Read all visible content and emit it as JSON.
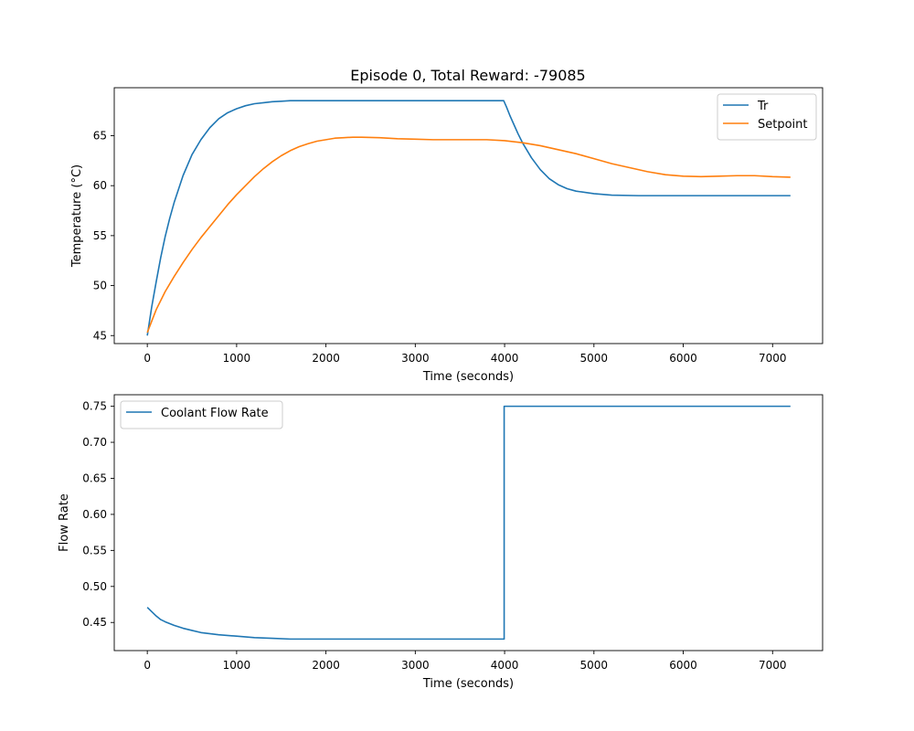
{
  "figure_title": "Episode 0, Total Reward: -79085",
  "chart_data": [
    {
      "type": "line",
      "title": "Episode 0, Total Reward: -79085",
      "xlabel": "Time (seconds)",
      "ylabel": "Temperature (°C)",
      "xlim": [
        -370,
        7560
      ],
      "ylim": [
        44.2,
        69.8
      ],
      "xticks": [
        0,
        1000,
        2000,
        3000,
        4000,
        5000,
        6000,
        7000
      ],
      "yticks": [
        45,
        50,
        55,
        60,
        65
      ],
      "legend_position": "top-right",
      "grid": false,
      "series": [
        {
          "name": "Tr",
          "color": "#1f77b4",
          "x": [
            0,
            50,
            100,
            150,
            200,
            250,
            300,
            400,
            500,
            600,
            700,
            800,
            900,
            1000,
            1100,
            1200,
            1300,
            1400,
            1500,
            1600,
            1800,
            2000,
            2500,
            3000,
            3500,
            3990,
            4020,
            4060,
            4100,
            4150,
            4200,
            4300,
            4400,
            4500,
            4600,
            4700,
            4800,
            5000,
            5200,
            5500,
            6000,
            6500,
            7000,
            7200
          ],
          "y": [
            45.0,
            47.9,
            50.4,
            52.8,
            54.9,
            56.7,
            58.3,
            61.0,
            63.1,
            64.6,
            65.8,
            66.7,
            67.3,
            67.7,
            68.0,
            68.2,
            68.3,
            68.4,
            68.45,
            68.5,
            68.5,
            68.5,
            68.5,
            68.5,
            68.5,
            68.5,
            67.9,
            67.0,
            66.2,
            65.2,
            64.3,
            62.8,
            61.6,
            60.7,
            60.1,
            59.7,
            59.45,
            59.2,
            59.05,
            59.0,
            59.0,
            59.0,
            59.0,
            59.0
          ]
        },
        {
          "name": "Setpoint",
          "color": "#ff7f0e",
          "x": [
            0,
            100,
            200,
            300,
            400,
            500,
            600,
            700,
            800,
            900,
            1000,
            1100,
            1200,
            1300,
            1400,
            1500,
            1600,
            1700,
            1800,
            1900,
            2000,
            2100,
            2200,
            2300,
            2400,
            2600,
            2800,
            3000,
            3200,
            3400,
            3600,
            3800,
            4000,
            4200,
            4400,
            4600,
            4800,
            5000,
            5200,
            5400,
            5600,
            5800,
            6000,
            6200,
            6400,
            6600,
            6800,
            7000,
            7200
          ],
          "y": [
            45.3,
            47.6,
            49.4,
            50.9,
            52.3,
            53.6,
            54.8,
            55.9,
            57.0,
            58.1,
            59.1,
            60.0,
            60.9,
            61.7,
            62.4,
            63.0,
            63.5,
            63.9,
            64.2,
            64.45,
            64.6,
            64.75,
            64.8,
            64.85,
            64.85,
            64.8,
            64.7,
            64.65,
            64.6,
            64.6,
            64.6,
            64.6,
            64.5,
            64.3,
            64.0,
            63.6,
            63.2,
            62.7,
            62.2,
            61.8,
            61.4,
            61.1,
            60.95,
            60.9,
            60.95,
            61.0,
            61.0,
            60.9,
            60.85
          ]
        }
      ]
    },
    {
      "type": "line",
      "title": "",
      "xlabel": "Time (seconds)",
      "ylabel": "Flow Rate",
      "xlim": [
        -370,
        7560
      ],
      "ylim": [
        0.411,
        0.766
      ],
      "xticks": [
        0,
        1000,
        2000,
        3000,
        4000,
        5000,
        6000,
        7000
      ],
      "yticks": [
        0.45,
        0.5,
        0.55,
        0.6,
        0.65,
        0.7,
        0.75
      ],
      "ytick_labels": [
        "0.45",
        "0.50",
        "0.55",
        "0.60",
        "0.65",
        "0.70",
        "0.75"
      ],
      "legend_position": "top-left",
      "grid": false,
      "series": [
        {
          "name": "Coolant Flow Rate",
          "color": "#1f77b4",
          "x": [
            0,
            50,
            100,
            150,
            200,
            300,
            400,
            500,
            600,
            800,
            1000,
            1200,
            1400,
            1600,
            2000,
            2500,
            3000,
            3500,
            3995,
            3995,
            4000,
            5000,
            6000,
            7000,
            7200
          ],
          "y": [
            0.471,
            0.465,
            0.459,
            0.454,
            0.451,
            0.446,
            0.442,
            0.439,
            0.436,
            0.433,
            0.431,
            0.429,
            0.428,
            0.427,
            0.427,
            0.427,
            0.427,
            0.427,
            0.427,
            0.75,
            0.75,
            0.75,
            0.75,
            0.75,
            0.75
          ]
        }
      ]
    }
  ]
}
